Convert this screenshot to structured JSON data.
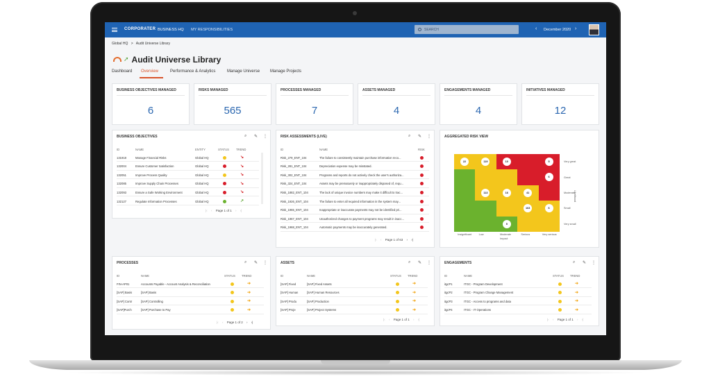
{
  "topbar": {
    "logo": "CORPORATER",
    "nav_business_hq": "BUSINESS HQ",
    "nav_responsibilities": "MY RESPONSIBILITIES",
    "search_placeholder": "SEARCH",
    "period_prev": "‹",
    "period": "December 2020",
    "period_next": "›"
  },
  "breadcrumb": {
    "root": "Global HQ",
    "sep": ">",
    "current": "Audit Universe Library"
  },
  "page_title": "Audit Universe Library",
  "tabs": [
    "Dashboard",
    "Overview",
    "Performance & Analytics",
    "Manage Universe",
    "Manage Projects"
  ],
  "active_tab": 1,
  "kpis": [
    {
      "label": "BUSINESS OBJECTIVES MANAGED",
      "value": "6"
    },
    {
      "label": "RISKS MANAGED",
      "value": "565"
    },
    {
      "label": "PROCESSES MANAGED",
      "value": "7"
    },
    {
      "label": "ASSETS MANAGED",
      "value": "4"
    },
    {
      "label": "ENGAGEMENTS MANAGED",
      "value": "4"
    },
    {
      "label": "INITIATIVES MANAGED",
      "value": "12"
    }
  ],
  "business_objectives": {
    "title": "BUSINESS OBJECTIVES",
    "headers": {
      "id": "ID",
      "name": "NAME",
      "entity": "ENTITY",
      "status": "STATUS",
      "trend": "TREND"
    },
    "rows": [
      {
        "id": "131918",
        "name": "Manage Financial Risks",
        "entity": "Global HQ",
        "status": "yellow",
        "trend": "down"
      },
      {
        "id": "132004",
        "name": "Ensure Customer Satisfaction",
        "entity": "Global HQ",
        "status": "red",
        "trend": "down"
      },
      {
        "id": "132051",
        "name": "Improve Process Quality",
        "entity": "Global HQ",
        "status": "yellow",
        "trend": "down"
      },
      {
        "id": "132085",
        "name": "Improve Supply Chain Processes",
        "entity": "Global HQ",
        "status": "red",
        "trend": "down"
      },
      {
        "id": "132093",
        "name": "Ensure a Safe Working Environment",
        "entity": "Global HQ",
        "status": "red",
        "trend": "down"
      },
      {
        "id": "132127",
        "name": "Regulate Information Processes",
        "entity": "Global HQ",
        "status": "green",
        "trend": "up"
      }
    ],
    "pager": "Page 1 of 1"
  },
  "risk_assessments": {
    "title": "RISK ASSESSMENTS (LIVE)",
    "headers": {
      "id": "ID",
      "name": "NAME",
      "risk": "RISK"
    },
    "rows": [
      {
        "id": "Risk_279_ENT_104",
        "name": "The failure to consistently maintain purchase information reco...",
        "risk": "red"
      },
      {
        "id": "Risk_281_ENT_104",
        "name": "Depreciation expense may be misstated.",
        "risk": "red"
      },
      {
        "id": "Risk_302_ENT_104",
        "name": "Programs and reports do not actively check the user's authoriza...",
        "risk": "red"
      },
      {
        "id": "Risk_324_ENT_104",
        "name": "Assets may be prematurely or inappropriately disposed of, requ...",
        "risk": "red"
      },
      {
        "id": "Risk_1882_ENT_104",
        "name": "The lack of unique invoice numbers may make it difficult to trac...",
        "risk": "red"
      },
      {
        "id": "Risk_1926_ENT_104",
        "name": "The failure to enter all required information in the system may...",
        "risk": "red"
      },
      {
        "id": "Risk_1965_ENT_104",
        "name": "Inappropriate or inaccurate payments may not be identified pri...",
        "risk": "red"
      },
      {
        "id": "Risk_1967_ENT_104",
        "name": "Unauthorized changes to payment programs may result in inacc...",
        "risk": "red"
      },
      {
        "id": "Risk_1968_ENT_104",
        "name": "Automatic payments may be inaccurately generated.",
        "risk": "red"
      }
    ],
    "pager": "Page 1 of 63"
  },
  "aggregated_risk": {
    "title": "AGGREGATED RISK VIEW",
    "impact_labels": [
      "Insignificant",
      "Low",
      "Moderate",
      "Serious",
      "Very serious"
    ],
    "impact_axis": "Impact",
    "likelihood_labels": [
      "Very great",
      "Great",
      "Moderate",
      "Small",
      "Very small"
    ],
    "likelihood_axis": "Likelihood",
    "grid_colors": [
      [
        "yellow",
        "yellow",
        "red",
        "red",
        "red"
      ],
      [
        "green",
        "yellow",
        "yellow",
        "red",
        "red"
      ],
      [
        "green",
        "yellow",
        "yellow",
        "yellow",
        "red"
      ],
      [
        "green",
        "green",
        "yellow",
        "yellow",
        "yellow"
      ],
      [
        "green",
        "green",
        "green",
        "yellow",
        "yellow"
      ]
    ],
    "counts": [
      {
        "row": 0,
        "col": 0,
        "value": "22"
      },
      {
        "row": 0,
        "col": 1,
        "value": "119"
      },
      {
        "row": 0,
        "col": 2,
        "value": "10"
      },
      {
        "row": 0,
        "col": 4,
        "value": "5"
      },
      {
        "row": 1,
        "col": 4,
        "value": "6"
      },
      {
        "row": 2,
        "col": 1,
        "value": "113"
      },
      {
        "row": 2,
        "col": 2,
        "value": "16"
      },
      {
        "row": 2,
        "col": 3,
        "value": "41"
      },
      {
        "row": 3,
        "col": 3,
        "value": "163"
      },
      {
        "row": 3,
        "col": 4,
        "value": "6"
      },
      {
        "row": 4,
        "col": 2,
        "value": "5"
      }
    ]
  },
  "processes": {
    "title": "PROCESSES",
    "headers": {
      "id": "ID",
      "name": "NAME",
      "status": "STATUS",
      "trend": "TREND"
    },
    "rows": [
      {
        "id": "FIN-AP01",
        "name": "Accounts Payable - Account Analysis & Reconciliation",
        "status": "yellow",
        "trend": "right"
      },
      {
        "id": "[SAP] Basis",
        "name": "[SAP] Basis",
        "status": "yellow",
        "trend": "right"
      },
      {
        "id": "[SAP] Contr",
        "name": "[SAP] Controlling",
        "status": "yellow",
        "trend": "right"
      },
      {
        "id": "[SAP]Purch",
        "name": "[SAP] Purchase to Pay",
        "status": "yellow",
        "trend": "right"
      }
    ],
    "pager": "Page 1 of 2"
  },
  "assets": {
    "title": "ASSETS",
    "headers": {
      "id": "ID",
      "name": "NAME",
      "status": "STATUS",
      "trend": "TREND"
    },
    "rows": [
      {
        "id": "[SAP] Fixed",
        "name": "[SAP] Fixed Assets",
        "status": "yellow",
        "trend": "right"
      },
      {
        "id": "[SAP] Human",
        "name": "[SAP] Human Resources",
        "status": "yellow",
        "trend": "right"
      },
      {
        "id": "[SAP] Produ",
        "name": "[SAP] Production",
        "status": "yellow",
        "trend": "right"
      },
      {
        "id": "[SAP] Proje",
        "name": "[SAP] Project Systems",
        "status": "yellow",
        "trend": "right"
      }
    ],
    "pager": "Page 1 of 1"
  },
  "engagements": {
    "title": "ENGAGEMENTS",
    "headers": {
      "id": "ID",
      "name": "NAME",
      "status": "STATUS",
      "trend": "TREND"
    },
    "rows": [
      {
        "id": "itgcP1",
        "name": "ITGC - Program Development",
        "status": "yellow",
        "trend": "right"
      },
      {
        "id": "itgcP2",
        "name": "ITGC - Program Change Management",
        "status": "yellow",
        "trend": "right"
      },
      {
        "id": "itgcP3",
        "name": "ITGC - Access to programs and data",
        "status": "yellow",
        "trend": "right"
      },
      {
        "id": "itgcP4",
        "name": "ITGC - IT Operations",
        "status": "yellow",
        "trend": "right"
      }
    ],
    "pager": "Page 1 of 1"
  },
  "colors": {
    "red": "#d81d2a",
    "yellow": "#f3c61c",
    "green": "#6bb22e",
    "trend_down": "#d5262a",
    "trend_up": "#5da534",
    "trend_right": "#f2a81c"
  },
  "pager_icons": {
    "first": "|‹",
    "prev": "‹",
    "next": "›",
    "last": "›|"
  }
}
